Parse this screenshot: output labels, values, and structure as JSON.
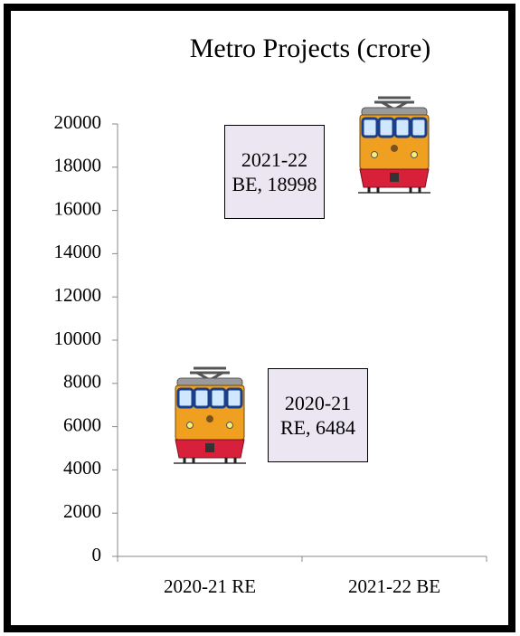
{
  "chart_data": {
    "type": "pictograph",
    "title": "Metro Projects (crore)",
    "categories": [
      "2020-21 RE",
      "2021-22 BE"
    ],
    "values": [
      6484,
      18998
    ],
    "value_labels": [
      "2020-21 RE, 6484",
      "2021-22 BE, 18998"
    ],
    "ylim": [
      0,
      20000
    ],
    "yticks": [
      0,
      2000,
      4000,
      6000,
      8000,
      10000,
      12000,
      14000,
      16000,
      18000,
      20000
    ],
    "grid": false
  }
}
